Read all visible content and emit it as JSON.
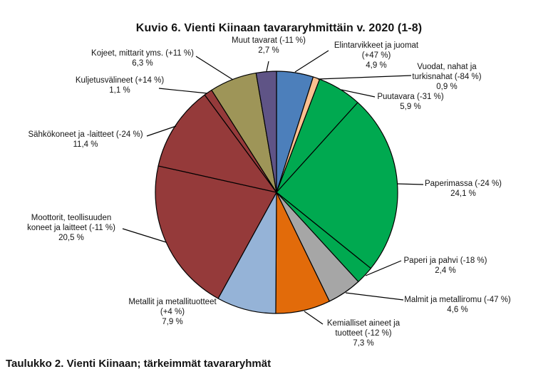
{
  "title": "Kuvio 6. Vienti Kiinaan tavararyhmittäin v. 2020 (1-8)",
  "caption": "Taulukko 2. Vienti Kiinaan; tärkeimmät tavararyhmät",
  "chart_data": {
    "type": "pie",
    "title": "Kuvio 6. Vienti Kiinaan tavararyhmittäin v. 2020 (1-8)",
    "start_angle_deg": 0,
    "direction": "clockwise",
    "legend_position": "none",
    "slices": [
      {
        "name": "Elintarvikkeet ja juomat",
        "change": "+47 %",
        "value": 4.9,
        "share": "4,9 %",
        "color": "#4C7FBB",
        "label_lines": [
          "Elintarvikkeet ja juomat",
          "(+47 %)",
          "4,9 %"
        ]
      },
      {
        "name": "Vuodat, nahat ja turkisnahat",
        "change": "-84 %",
        "value": 0.9,
        "share": "0,9 %",
        "color": "#FAC090",
        "label_lines": [
          "Vuodat, nahat ja",
          "turkisnahat (-84 %)",
          "0,9 %"
        ]
      },
      {
        "name": "Puutavara",
        "change": "-31 %",
        "value": 5.9,
        "share": "5,9 %",
        "color": "#00A950",
        "label_lines": [
          "Puutavara (-31 %)",
          "5,9 %"
        ]
      },
      {
        "name": "Paperimassa",
        "change": "-24 %",
        "value": 24.1,
        "share": "24,1 %",
        "color": "#00A950",
        "label_lines": [
          "Paperimassa (-24 %)",
          "24,1 %"
        ]
      },
      {
        "name": "Paperi ja pahvi",
        "change": "-18 %",
        "value": 2.4,
        "share": "2,4 %",
        "color": "#00A950",
        "label_lines": [
          "Paperi ja pahvi (-18 %)",
          "2,4 %"
        ]
      },
      {
        "name": "Malmit ja metalliromu",
        "change": "-47 %",
        "value": 4.6,
        "share": "4,6 %",
        "color": "#A6A6A6",
        "label_lines": [
          "Malmit ja metalliromu (-47 %)",
          "4,6 %"
        ]
      },
      {
        "name": "Kemialliset aineet ja tuotteet",
        "change": "-12 %",
        "value": 7.3,
        "share": "7,3 %",
        "color": "#E26B0A",
        "label_lines": [
          "Kemialliset aineet ja",
          "tuotteet (-12 %)",
          "7,3 %"
        ]
      },
      {
        "name": "Metallit ja metallituotteet",
        "change": "+4 %",
        "value": 7.9,
        "share": "7,9 %",
        "color": "#95B3D7",
        "label_lines": [
          "Metallit ja metallituotteet",
          "(+4 %)",
          "7,9 %"
        ]
      },
      {
        "name": "Moottorit, teollisuuden koneet ja laitteet",
        "change": "-11 %",
        "value": 20.5,
        "share": "20,5 %",
        "color": "#953A3A",
        "label_lines": [
          "Moottorit, teollisuuden",
          "koneet ja laitteet (-11 %)",
          "20,5 %"
        ]
      },
      {
        "name": "Sähkökoneet ja -laitteet",
        "change": "-24 %",
        "value": 11.4,
        "share": "11,4 %",
        "color": "#953A3A",
        "label_lines": [
          "Sähkökoneet ja -laitteet (-24 %)",
          "11,4 %"
        ]
      },
      {
        "name": "Kuljetusvälineet",
        "change": "+14 %",
        "value": 1.1,
        "share": "1,1 %",
        "color": "#953A3A",
        "label_lines": [
          "Kuljetusvälineet (+14 %)",
          "1,1 %"
        ]
      },
      {
        "name": "Kojeet, mittarit yms.",
        "change": "+11 %",
        "value": 6.3,
        "share": "6,3 %",
        "color": "#9E9558",
        "label_lines": [
          "Kojeet, mittarit yms. (+11 %)",
          "6,3 %"
        ]
      },
      {
        "name": "Muut tavarat",
        "change": "-11 %",
        "value": 2.7,
        "share": "2,7 %",
        "color": "#5F5486",
        "label_lines": [
          "Muut tavarat (-11 %)",
          "2,7 %"
        ]
      }
    ],
    "outline_color": "#000000"
  }
}
